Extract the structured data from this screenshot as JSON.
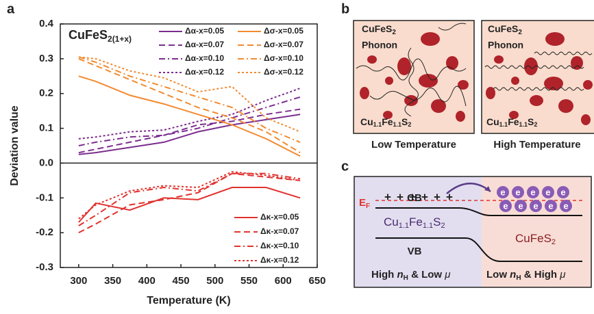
{
  "panel_labels": [
    "a",
    "b",
    "c"
  ],
  "chart_data": {
    "type": "line",
    "annotation": [
      "CuFeS",
      "2(1+x)"
    ],
    "xlabel": "Temperature (K)",
    "ylabel": "Deviation value",
    "x": [
      300,
      325,
      375,
      425,
      475,
      525,
      575,
      625
    ],
    "xlim": [
      273,
      650
    ],
    "xticks": [
      300,
      350,
      400,
      450,
      500,
      550,
      600,
      650
    ],
    "ylim": [
      -0.3,
      0.4
    ],
    "yticks": [
      0.4,
      0.3,
      0.2,
      0.1,
      {
        "value": 0,
        "label": "0.0"
      },
      -0.1,
      -0.2,
      -0.3
    ],
    "series": [
      {
        "name": "Δα-x=0.05",
        "color": "#7b2d8e",
        "dash": "solid",
        "values": [
          0.025,
          0.03,
          0.045,
          0.06,
          0.09,
          0.11,
          0.125,
          0.14
        ]
      },
      {
        "name": "Δα-x=0.07",
        "color": "#7b2d8e",
        "dash": "dashed",
        "values": [
          0.03,
          0.04,
          0.06,
          0.08,
          0.11,
          0.12,
          0.14,
          0.155
        ]
      },
      {
        "name": "Δα-x=0.10",
        "color": "#7b2d8e",
        "dash": "dashdot",
        "values": [
          0.05,
          0.06,
          0.075,
          0.08,
          0.1,
          0.13,
          0.16,
          0.19
        ]
      },
      {
        "name": "Δα-x=0.12",
        "color": "#7b2d8e",
        "dash": "dotted",
        "values": [
          0.07,
          0.075,
          0.09,
          0.095,
          0.12,
          0.14,
          0.18,
          0.215
        ]
      },
      {
        "name": "Δσ-x=0.05",
        "color": "#f28a30",
        "dash": "solid",
        "values": [
          0.25,
          0.235,
          0.195,
          0.17,
          0.14,
          0.11,
          0.07,
          0.02
        ]
      },
      {
        "name": "Δσ-x=0.07",
        "color": "#f28a30",
        "dash": "dashed",
        "values": [
          0.3,
          0.28,
          0.24,
          0.2,
          0.16,
          0.13,
          0.09,
          0.03
        ]
      },
      {
        "name": "Δσ-x=0.10",
        "color": "#f28a30",
        "dash": "dashdot",
        "values": [
          0.305,
          0.29,
          0.25,
          0.22,
          0.19,
          0.16,
          0.1,
          0.06
        ]
      },
      {
        "name": "Δσ-x=0.12",
        "color": "#f28a30",
        "dash": "dotted",
        "values": [
          0.305,
          0.3,
          0.265,
          0.245,
          0.205,
          0.22,
          0.13,
          0.09
        ]
      },
      {
        "name": "Δκ-x=0.05",
        "color": "#e0322e",
        "dash": "solid",
        "values": [
          -0.17,
          -0.115,
          -0.135,
          -0.1,
          -0.105,
          -0.07,
          -0.07,
          -0.1
        ]
      },
      {
        "name": "Δκ-x=0.07",
        "color": "#e0322e",
        "dash": "dashed",
        "values": [
          -0.2,
          -0.175,
          -0.12,
          -0.105,
          -0.085,
          -0.03,
          -0.04,
          -0.05
        ]
      },
      {
        "name": "Δκ-x=0.10",
        "color": "#e0322e",
        "dash": "dashdot",
        "values": [
          -0.18,
          -0.15,
          -0.085,
          -0.07,
          -0.08,
          -0.03,
          -0.03,
          -0.045
        ]
      },
      {
        "name": "Δκ-x=0.12",
        "color": "#e0322e",
        "dash": "dotted",
        "values": [
          -0.16,
          -0.12,
          -0.08,
          -0.065,
          -0.07,
          -0.025,
          -0.035,
          -0.05
        ]
      }
    ]
  },
  "panel_b": {
    "host": [
      "CuFeS",
      "2"
    ],
    "phonon": "Phonon",
    "matrix": [
      "Cu",
      "1.1",
      "Fe",
      "1.1",
      "S",
      "2"
    ],
    "captions": [
      "Low Temperature",
      "High Temperature"
    ]
  },
  "panel_c": {
    "cb": "CB",
    "vb": "VB",
    "ef": [
      "E",
      "F"
    ],
    "hole": "+",
    "electron": "e",
    "left_material": [
      "Cu",
      "1.1",
      "Fe",
      "1.1",
      "S",
      "2"
    ],
    "right_material": [
      "CuFeS",
      "2"
    ],
    "left_caption": [
      "High ",
      "n",
      "H",
      " & Low ",
      "μ"
    ],
    "right_caption": [
      "Low ",
      "n",
      "H",
      " & High ",
      "μ"
    ]
  }
}
